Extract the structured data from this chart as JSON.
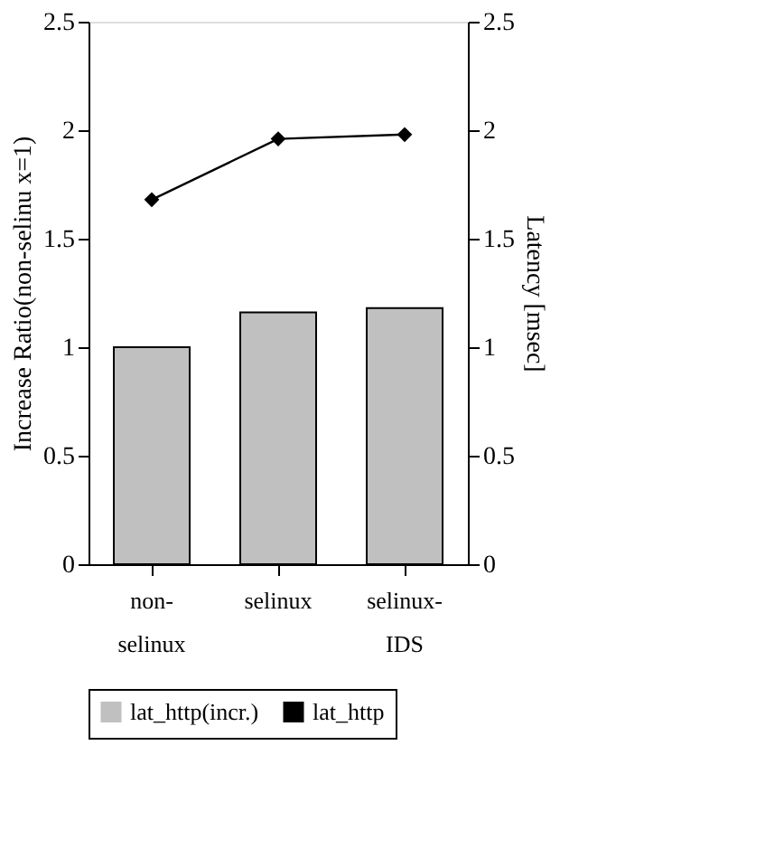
{
  "chart_data": {
    "type": "bar",
    "categories": [
      "non-selinux",
      "selinux",
      "selinux-IDS"
    ],
    "ylabel": "Increase Ratio(non-selinu x=1)",
    "y2label": "Latency [msec]",
    "ylim": [
      0,
      2.5
    ],
    "yticks": [
      0,
      0.5,
      1,
      1.5,
      2,
      2.5
    ],
    "y2lim": [
      0,
      2.5
    ],
    "y2ticks": [
      0,
      0.5,
      1,
      1.5,
      2,
      2.5
    ],
    "series": [
      {
        "name": "lat_http(incr.)",
        "color": "#c0c0c0",
        "values": [
          1.0,
          1.16,
          1.18
        ]
      },
      {
        "name": "lat_http",
        "type": "line",
        "axis": "y2",
        "color": "#000000",
        "values": [
          1.68,
          1.96,
          1.98
        ]
      }
    ],
    "marker": "diamond",
    "line_style": "solid",
    "grid": false,
    "legend": "bottom"
  }
}
